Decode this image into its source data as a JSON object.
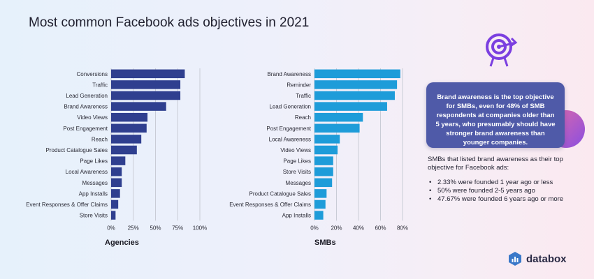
{
  "title": "Most common Facebook ads objectives in 2021",
  "chart_data": [
    {
      "type": "bar",
      "orientation": "horizontal",
      "subtitle": "Agencies",
      "color": "#2f3f8f",
      "categories": [
        "Conversions",
        "Traffic",
        "Lead Generation",
        "Brand Awareness",
        "Video Views",
        "Post Engagement",
        "Reach",
        "Product Catalogue Sales",
        "Page Likes",
        "Local Awareness",
        "Messages",
        "App Installs",
        "Event Responses & Offer Claims",
        "Store Visits"
      ],
      "values": [
        83,
        78,
        78,
        62,
        41,
        40,
        34,
        29,
        16,
        12,
        12,
        10,
        8,
        5
      ],
      "xlim": [
        0,
        100
      ],
      "ticks": [
        0,
        25,
        50,
        75,
        100
      ],
      "tick_labels": [
        "0%",
        "25%",
        "50%",
        "75%",
        "100%"
      ],
      "grid": true
    },
    {
      "type": "bar",
      "orientation": "horizontal",
      "subtitle": "SMBs",
      "color": "#1e9cd9",
      "categories": [
        "Brand Awareness",
        "Reminder",
        "Traffic",
        "Lead Generation",
        "Reach",
        "Post Engagement",
        "Local Awareness",
        "Video Views",
        "Page Likes",
        "Store Visits",
        "Messages",
        "Product Catalogue Sales",
        "Event Responses & Offer Claims",
        "App Installs"
      ],
      "values": [
        78,
        75,
        73,
        66,
        44,
        41,
        23,
        21,
        17,
        17,
        16,
        11,
        10,
        8
      ],
      "xlim": [
        0,
        80
      ],
      "ticks": [
        0,
        20,
        40,
        60,
        80
      ],
      "tick_labels": [
        "0%",
        "20%",
        "40%",
        "60%",
        "80%"
      ],
      "grid": true
    }
  ],
  "callout": "Brand awareness is the top objective for SMBs, even for 48% of SMB respondents at companies older than 5 years, who presumably should have stronger brand awareness than younger companies.",
  "note": "SMBs that listed brand awareness as their top objective for Facebook ads:",
  "bullets": [
    "2.33% were founded 1 year ago or less",
    "50% were founded 2-5 years ago",
    "47.67% were founded 6 years ago or more"
  ],
  "brand": "databox",
  "icons": {
    "target": "target-arrow-icon",
    "logo": "databox-logo-icon"
  },
  "colors": {
    "accent_purple": "#7b3fe0",
    "callout_bg": "#4f5aa8"
  }
}
